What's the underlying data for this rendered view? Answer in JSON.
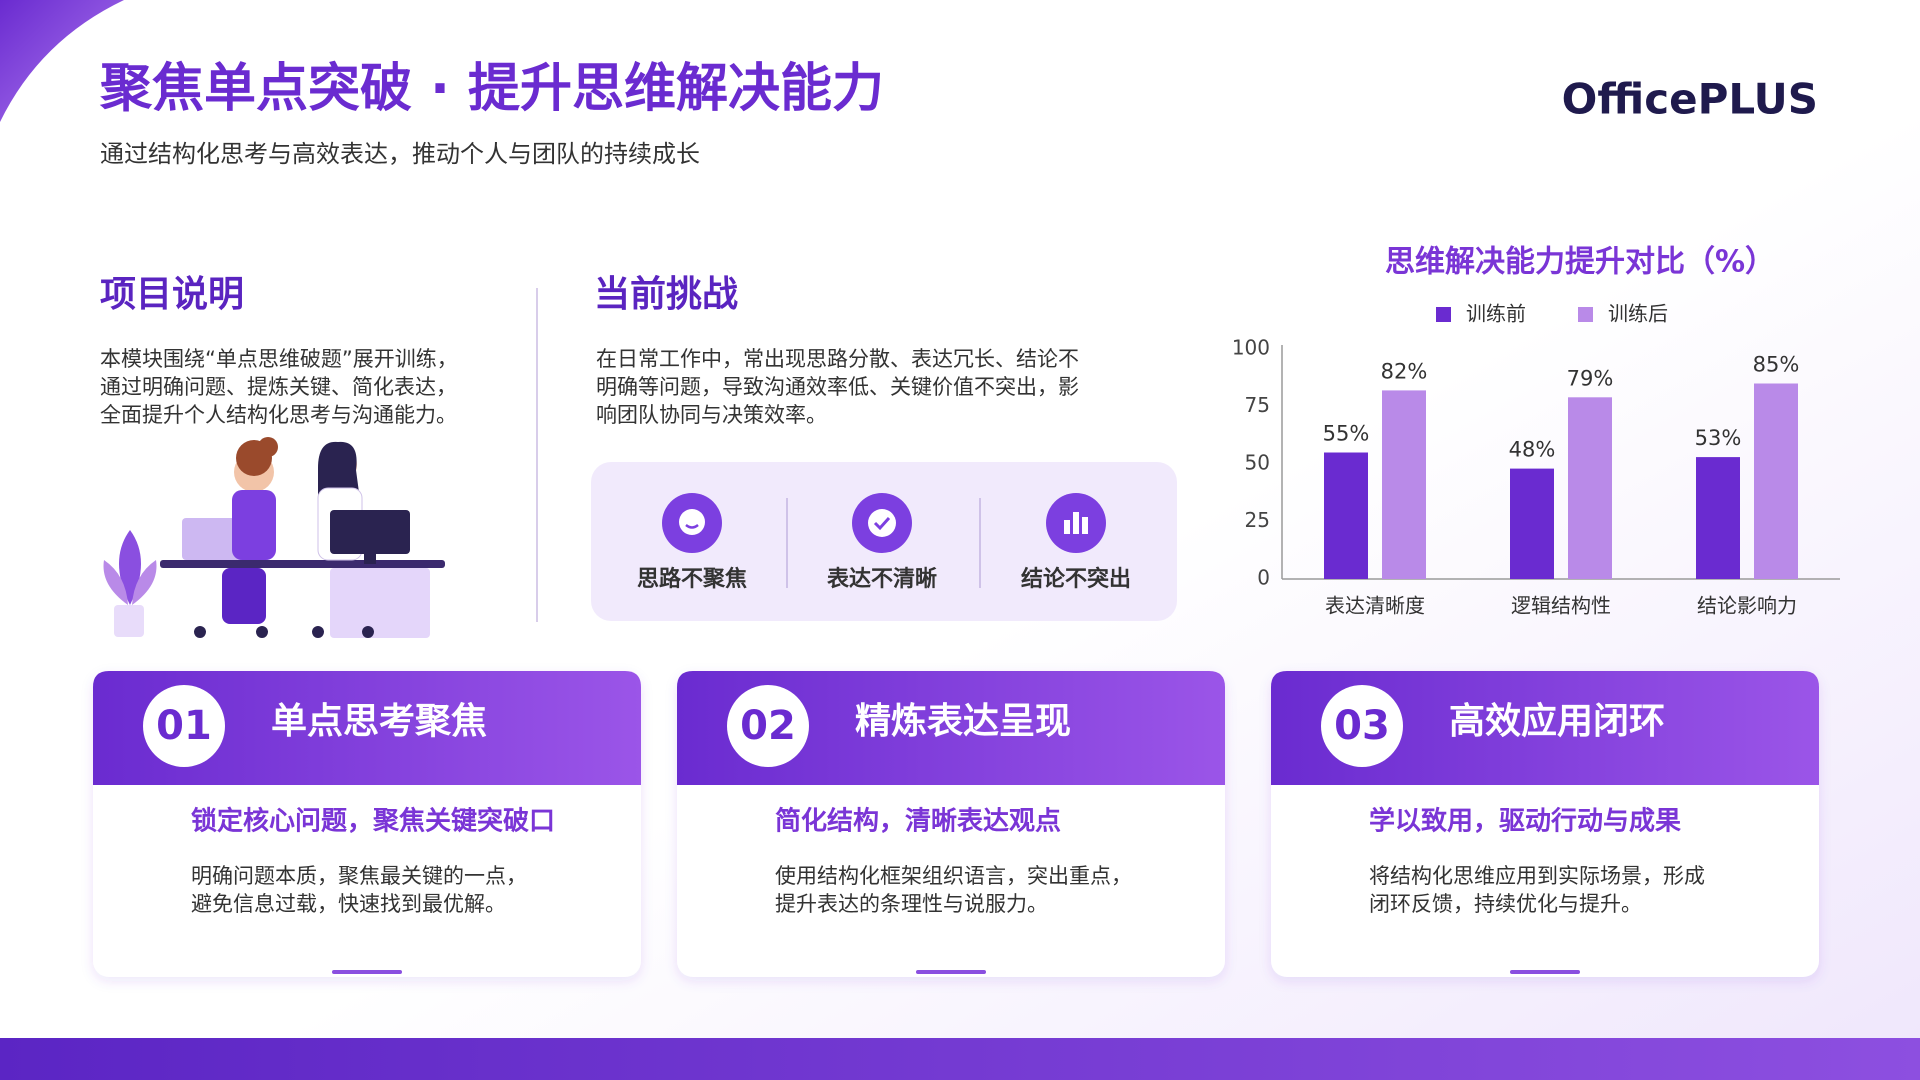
{
  "header": {
    "title": "聚焦单点突破 · 提升思维解决能力",
    "subtitle": "通过结构化思考与高效表达，推动个人与团队的持续成长",
    "logo": "OfficePLUS"
  },
  "intro": {
    "title": "项目说明",
    "lines": [
      "本模块围绕“单点思维破题”展开训练，",
      "通过明确问题、提炼关键、简化表达，",
      "全面提升个人结构化思考与沟通能力。"
    ]
  },
  "challenge": {
    "title": "当前挑战",
    "lines": [
      "在日常工作中，常出现思路分散、表达冗长、结论不",
      "明确等问题，导致沟通效率低、关键价值不突出，影",
      "响团队协同与决策效率。"
    ],
    "items": [
      "思路不聚焦",
      "表达不清晰",
      "结论不突出"
    ]
  },
  "cards": [
    {
      "number": "01",
      "title": "单点思考聚焦",
      "subtitle": "锁定核心问题，聚焦关键突破口",
      "lines": [
        "明确问题本质，聚焦最关键的一点，",
        "避免信息过载，快速找到最优解。"
      ]
    },
    {
      "number": "02",
      "title": "精炼表达呈现",
      "subtitle": "简化结构，清晰表达观点",
      "lines": [
        "使用结构化框架组织语言，突出重点，",
        "提升表达的条理性与说服力。"
      ]
    },
    {
      "number": "03",
      "title": "高效应用闭环",
      "subtitle": "学以致用，驱动行动与成果",
      "lines": [
        "将结构化思维应用到实际场景，形成",
        "闭环反馈，持续优化与提升。"
      ]
    }
  ],
  "chart_data": {
    "type": "bar",
    "title": "思维解决能力提升对比（%）",
    "categories": [
      "表达清晰度",
      "逻辑结构性",
      "结论影响力"
    ],
    "series": [
      {
        "name": "训练前",
        "color": "#6a2bd0",
        "values": [
          55,
          48,
          53
        ],
        "value_labels": [
          "55%",
          "48%",
          "53%"
        ]
      },
      {
        "name": "训练后",
        "color": "#b98ae8",
        "values": [
          82,
          79,
          85
        ],
        "value_labels": [
          "82%",
          "79%",
          "85%"
        ]
      }
    ],
    "ylim": [
      0,
      100
    ],
    "yticks": [
      0,
      25,
      50,
      75,
      100
    ]
  }
}
